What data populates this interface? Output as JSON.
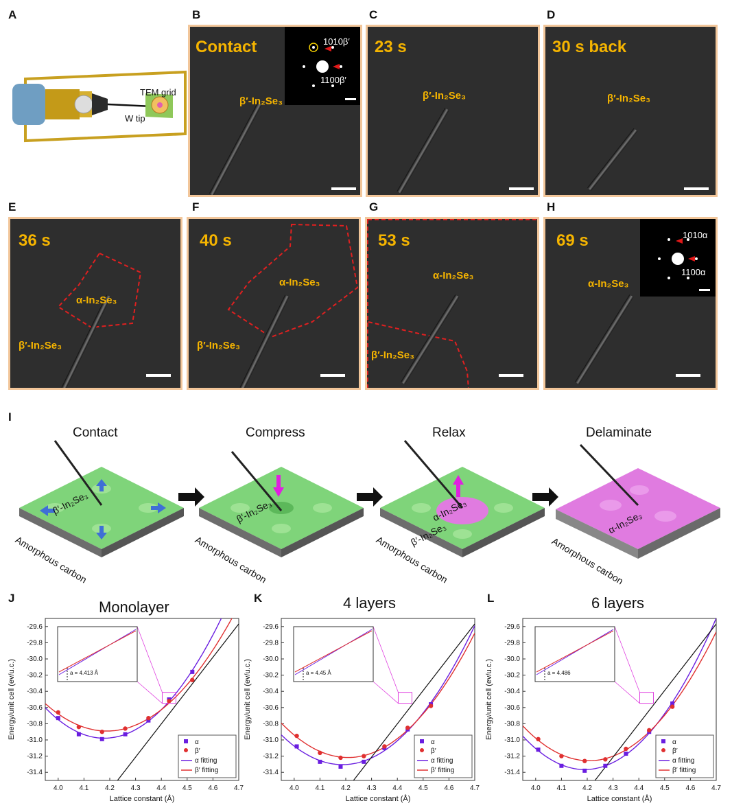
{
  "panel_labels": {
    "A": "A",
    "B": "B",
    "C": "C",
    "D": "D",
    "E": "E",
    "F": "F",
    "G": "G",
    "H": "H",
    "I": "I",
    "J": "J",
    "K": "K",
    "L": "L"
  },
  "schematic": {
    "tem_grid": "TEM grid",
    "w_tip": "W tip"
  },
  "tem_panels": {
    "B": {
      "time": "Contact",
      "labels": [
        "β′-In₂Se₃"
      ],
      "diffraction": [
        "1010β′",
        "1100β′"
      ]
    },
    "C": {
      "time": "23 s",
      "labels": [
        "β′-In₂Se₃"
      ]
    },
    "D": {
      "time": "30 s back",
      "labels": [
        "β′-In₂Se₃"
      ]
    },
    "E": {
      "time": "36 s",
      "labels": [
        "α-In₂Se₃",
        "β′-In₂Se₃"
      ]
    },
    "F": {
      "time": "40 s",
      "labels": [
        "α-In₂Se₃",
        "β′-In₂Se₃"
      ]
    },
    "G": {
      "time": "53 s",
      "labels": [
        "α-In₂Se₃",
        "β′-In₂Se₃"
      ]
    },
    "H": {
      "time": "69 s",
      "labels": [
        "α-In₂Se₃"
      ],
      "diffraction": [
        "1010α",
        "1100α"
      ]
    }
  },
  "stages": [
    {
      "title": "Contact",
      "phase": "β′-In₂Se₃",
      "substrate": "Amorphous carbon"
    },
    {
      "title": "Compress",
      "phase": "β′-In₂Se₃",
      "substrate": "Amorphous carbon"
    },
    {
      "title": "Relax",
      "phase": "α-In₂Se₃",
      "phase2": "β′-In₂Se₃",
      "substrate": "Amorphous carbon"
    },
    {
      "title": "Delaminate",
      "phase": "α-In₂Se₃",
      "substrate": "Amorphous carbon"
    }
  ],
  "colors": {
    "beta_fill": "#7fd47a",
    "alpha_fill": "#e07be0",
    "frame": "#f2c69a",
    "label": "#f5b400",
    "alpha_series": "#6a1ee0",
    "beta_series": "#e03030"
  },
  "chart_data": [
    {
      "type": "scatter",
      "title": "Monolayer",
      "xlabel": "Lattice constant (Å)",
      "ylabel": "Energy/unit cell (ev/u.c.)",
      "xlim": [
        3.95,
        4.7
      ],
      "ylim": [
        -31.5,
        -29.5
      ],
      "xticks": [
        "4.0",
        "4.1",
        "4.2",
        "4.3",
        "4.4",
        "4.5",
        "4.6",
        "4.7"
      ],
      "yticks": [
        "-29.6",
        "-29.8",
        "-30.0",
        "-30.2",
        "-30.4",
        "-30.6",
        "-30.8",
        "-31.0",
        "-31.2",
        "-31.4"
      ],
      "series": [
        {
          "name": "α",
          "x": [
            4.0,
            4.08,
            4.17,
            4.26,
            4.35,
            4.43,
            4.52
          ],
          "y": [
            -30.73,
            -30.93,
            -30.99,
            -30.93,
            -30.76,
            -30.5,
            -30.16
          ]
        },
        {
          "name": "β′",
          "x": [
            4.0,
            4.08,
            4.17,
            4.26,
            4.35,
            4.43,
            4.52
          ],
          "y": [
            -30.66,
            -30.84,
            -30.9,
            -30.86,
            -30.73,
            -30.52,
            -30.26
          ]
        },
        {
          "name": "α  fitting"
        },
        {
          "name": "β′ fitting"
        }
      ],
      "annotation": "a = 4.413 Å"
    },
    {
      "type": "scatter",
      "title": "4 layers",
      "xlabel": "Lattice constant (Å)",
      "ylabel": "Energy/unit cell (ev/u.c.)",
      "xlim": [
        3.95,
        4.7
      ],
      "ylim": [
        -31.5,
        -29.5
      ],
      "xticks": [
        "4.0",
        "4.1",
        "4.2",
        "4.3",
        "4.4",
        "4.5",
        "4.6",
        "4.7"
      ],
      "yticks": [
        "-29.6",
        "-29.8",
        "-30.0",
        "-30.2",
        "-30.4",
        "-30.6",
        "-30.8",
        "-31.0",
        "-31.2",
        "-31.4"
      ],
      "series": [
        {
          "name": "α",
          "x": [
            4.01,
            4.1,
            4.18,
            4.27,
            4.35,
            4.44,
            4.53
          ],
          "y": [
            -31.08,
            -31.27,
            -31.33,
            -31.27,
            -31.1,
            -30.87,
            -30.56
          ]
        },
        {
          "name": "β′",
          "x": [
            4.01,
            4.1,
            4.18,
            4.27,
            4.35,
            4.44,
            4.53
          ],
          "y": [
            -30.95,
            -31.16,
            -31.22,
            -31.2,
            -31.08,
            -30.85,
            -30.58
          ]
        },
        {
          "name": "α  fitting"
        },
        {
          "name": "β′ fitting"
        }
      ],
      "annotation": "a = 4.45 Å"
    },
    {
      "type": "scatter",
      "title": "6 layers",
      "xlabel": "Lattice constant (Å)",
      "ylabel": "Energy/unit cell (ev/u.c.)",
      "xlim": [
        3.95,
        4.7
      ],
      "ylim": [
        -31.5,
        -29.5
      ],
      "xticks": [
        "4.0",
        "4.1",
        "4.2",
        "4.3",
        "4.4",
        "4.5",
        "4.6",
        "4.7"
      ],
      "yticks": [
        "-29.6",
        "-29.8",
        "-30.0",
        "-30.2",
        "-30.4",
        "-30.6",
        "-30.8",
        "-31.0",
        "-31.2",
        "-31.4"
      ],
      "series": [
        {
          "name": "α",
          "x": [
            4.01,
            4.1,
            4.19,
            4.27,
            4.35,
            4.44,
            4.53
          ],
          "y": [
            -31.12,
            -31.32,
            -31.38,
            -31.32,
            -31.17,
            -30.9,
            -30.55
          ]
        },
        {
          "name": "β′",
          "x": [
            4.01,
            4.1,
            4.19,
            4.27,
            4.35,
            4.44,
            4.53
          ],
          "y": [
            -30.99,
            -31.2,
            -31.26,
            -31.24,
            -31.11,
            -30.88,
            -30.59
          ]
        },
        {
          "name": "α  fitting"
        },
        {
          "name": "β′ fitting"
        }
      ],
      "annotation": "a = 4.486"
    }
  ]
}
